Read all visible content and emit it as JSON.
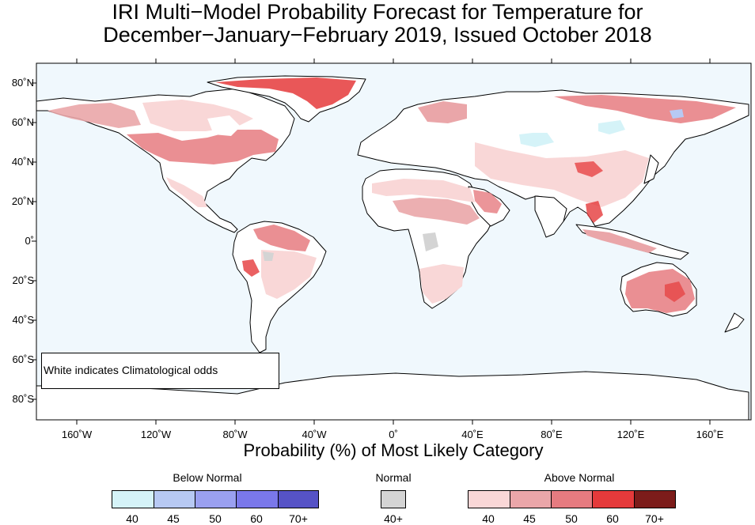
{
  "title_line1": "IRI Multi−Model Probability Forecast for Temperature for",
  "title_line2": "December−January−February 2019, Issued October 2018",
  "lat_labels": [
    "80˚N",
    "60˚N",
    "40˚N",
    "20˚N",
    "0˚",
    "20˚S",
    "40˚S",
    "60˚S",
    "80˚S"
  ],
  "lon_labels": [
    "160˚W",
    "120˚W",
    "80˚W",
    "40˚W",
    "0˚",
    "40˚E",
    "80˚E",
    "120˚E",
    "160˚E"
  ],
  "axis_title": "Probability (%) of Most Likely Category",
  "note": "White indicates Climatological odds",
  "legend": {
    "below": {
      "title": "Below Normal",
      "labels": [
        "40",
        "45",
        "50",
        "60",
        "70+"
      ],
      "colors": [
        "#d5f3f8",
        "#b7c9f3",
        "#9aa0f0",
        "#7a78ea",
        "#5653c6"
      ]
    },
    "normal": {
      "title": "Normal",
      "labels": [
        "40+"
      ],
      "colors": [
        "#d4d4d4"
      ]
    },
    "above": {
      "title": "Above Normal",
      "labels": [
        "40",
        "45",
        "50",
        "60",
        "70+"
      ],
      "colors": [
        "#f9d7d7",
        "#eaa6a9",
        "#e67b80",
        "#e53a3b",
        "#7c1c1a"
      ]
    }
  },
  "map_colors": {
    "ocean": "#f0f8fd",
    "land": "#ffffff",
    "coast": "#000000"
  }
}
